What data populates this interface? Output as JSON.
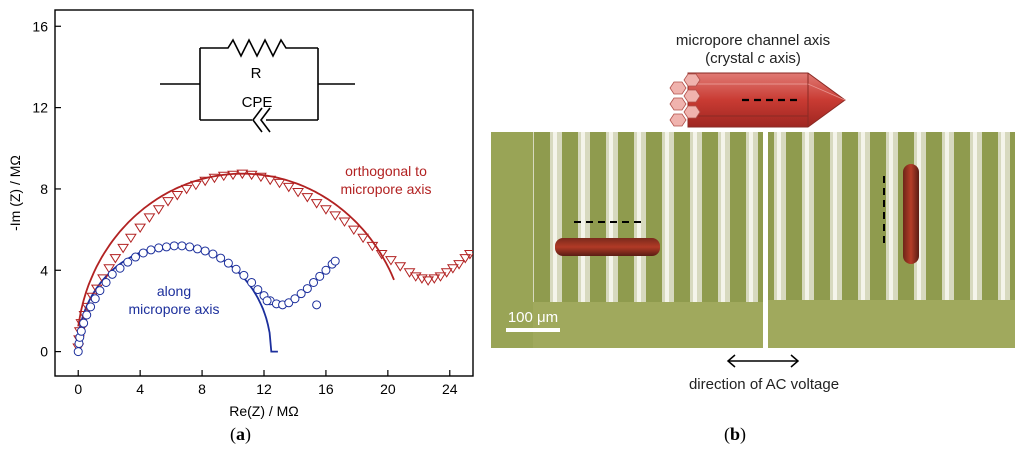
{
  "chart_data": {
    "type": "scatter",
    "xlabel": "Re(Z) / MΩ",
    "ylabel": "-Im (Z) / MΩ",
    "xlim": [
      -1.5,
      25.5
    ],
    "ylim": [
      -1.2,
      16.8
    ],
    "x_ticks": [
      "0",
      "4",
      "8",
      "12",
      "16",
      "20",
      "24"
    ],
    "y_ticks": [
      "0",
      "4",
      "8",
      "12",
      "16"
    ],
    "series": [
      {
        "name": "orthogonal to micropore axis",
        "line_1": "orthogonal to",
        "line_2": "micropore axis",
        "color": "#b22222",
        "marker": "triangle-down",
        "points": [
          [
            0.0,
            0.2
          ],
          [
            0.05,
            0.6
          ],
          [
            0.1,
            1.0
          ],
          [
            0.2,
            1.4
          ],
          [
            0.4,
            1.8
          ],
          [
            0.6,
            2.2
          ],
          [
            0.9,
            2.7
          ],
          [
            1.2,
            3.1
          ],
          [
            1.6,
            3.6
          ],
          [
            2.0,
            4.1
          ],
          [
            2.4,
            4.6
          ],
          [
            2.9,
            5.1
          ],
          [
            3.4,
            5.6
          ],
          [
            4.0,
            6.1
          ],
          [
            4.6,
            6.6
          ],
          [
            5.2,
            7.0
          ],
          [
            5.8,
            7.4
          ],
          [
            6.4,
            7.7
          ],
          [
            7.0,
            8.0
          ],
          [
            7.6,
            8.2
          ],
          [
            8.2,
            8.4
          ],
          [
            8.8,
            8.55
          ],
          [
            9.4,
            8.65
          ],
          [
            10.0,
            8.7
          ],
          [
            10.6,
            8.75
          ],
          [
            11.2,
            8.7
          ],
          [
            11.8,
            8.6
          ],
          [
            12.4,
            8.45
          ],
          [
            13.0,
            8.3
          ],
          [
            13.6,
            8.1
          ],
          [
            14.2,
            7.85
          ],
          [
            14.8,
            7.6
          ],
          [
            15.4,
            7.3
          ],
          [
            16.0,
            7.0
          ],
          [
            16.6,
            6.7
          ],
          [
            17.2,
            6.4
          ],
          [
            17.8,
            6.0
          ],
          [
            18.4,
            5.6
          ],
          [
            19.0,
            5.2
          ],
          [
            19.6,
            4.8
          ],
          [
            20.2,
            4.5
          ],
          [
            20.8,
            4.2
          ],
          [
            21.4,
            3.9
          ],
          [
            21.8,
            3.7
          ],
          [
            22.2,
            3.6
          ],
          [
            22.6,
            3.5
          ],
          [
            23.0,
            3.6
          ],
          [
            23.4,
            3.7
          ],
          [
            23.8,
            3.9
          ],
          [
            24.2,
            4.1
          ],
          [
            24.6,
            4.3
          ],
          [
            25.0,
            4.6
          ],
          [
            25.3,
            4.8
          ]
        ],
        "fit": {
          "x0": 0.0,
          "x1": 20.4
        }
      },
      {
        "name": "along micropore axis",
        "line_1": "along",
        "line_2": "micropore axis",
        "color": "#1c2f9c",
        "marker": "circle",
        "points": [
          [
            0.0,
            0.0
          ],
          [
            0.05,
            0.4
          ],
          [
            0.1,
            0.7
          ],
          [
            0.2,
            1.0
          ],
          [
            0.35,
            1.4
          ],
          [
            0.55,
            1.8
          ],
          [
            0.8,
            2.2
          ],
          [
            1.1,
            2.6
          ],
          [
            1.4,
            3.0
          ],
          [
            1.8,
            3.4
          ],
          [
            2.2,
            3.8
          ],
          [
            2.7,
            4.1
          ],
          [
            3.2,
            4.4
          ],
          [
            3.7,
            4.65
          ],
          [
            4.2,
            4.85
          ],
          [
            4.7,
            5.0
          ],
          [
            5.2,
            5.1
          ],
          [
            5.7,
            5.15
          ],
          [
            6.2,
            5.2
          ],
          [
            6.7,
            5.2
          ],
          [
            7.2,
            5.15
          ],
          [
            7.7,
            5.05
          ],
          [
            8.2,
            4.95
          ],
          [
            8.7,
            4.8
          ],
          [
            9.2,
            4.6
          ],
          [
            9.7,
            4.35
          ],
          [
            10.2,
            4.05
          ],
          [
            10.7,
            3.75
          ],
          [
            11.2,
            3.4
          ],
          [
            11.6,
            3.05
          ],
          [
            12.0,
            2.75
          ],
          [
            12.4,
            2.5
          ],
          [
            12.8,
            2.35
          ],
          [
            13.2,
            2.3
          ],
          [
            13.6,
            2.4
          ],
          [
            14.0,
            2.6
          ],
          [
            14.4,
            2.85
          ],
          [
            14.8,
            3.1
          ],
          [
            15.2,
            3.4
          ],
          [
            15.6,
            3.7
          ],
          [
            16.0,
            4.0
          ],
          [
            16.4,
            4.3
          ],
          [
            16.6,
            4.45
          ],
          [
            15.4,
            2.3
          ],
          [
            12.2,
            2.5
          ]
        ],
        "fit": {
          "x0": 0.0,
          "x1": 12.9
        }
      }
    ]
  },
  "circuit": {
    "resistor_label": "R",
    "cpe_label": "CPE"
  },
  "panel_b": {
    "crystal_title_1": "micropore channel axis",
    "crystal_title_2_pre": "(crystal ",
    "crystal_title_2_italic": "c",
    "crystal_title_2_post": " axis)",
    "scale_bar_label": "100 μm",
    "voltage_label": "direction of AC voltage"
  },
  "panel_labels": {
    "a_open": "(",
    "a_letter": "a",
    "a_close": ")",
    "b_open": "(",
    "b_letter": "b",
    "b_close": ")"
  }
}
